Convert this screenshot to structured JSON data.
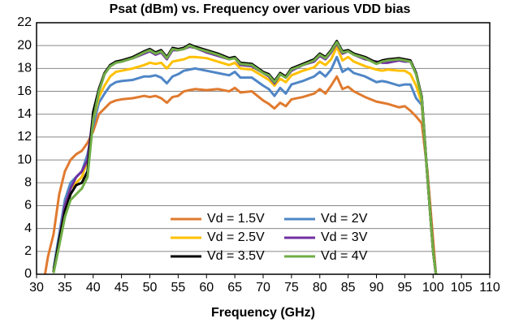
{
  "chart_data": {
    "type": "line",
    "title": "Psat (dBm) vs. Frequency over various VDD bias",
    "x_label": "Frequency (GHz)",
    "x": [
      31.5,
      32,
      33,
      34,
      35,
      36,
      37,
      38,
      39,
      40,
      41,
      42,
      43,
      44,
      45,
      47,
      49,
      50,
      51,
      52,
      53,
      54,
      55,
      56,
      57,
      58,
      60,
      62,
      64,
      65,
      66,
      68,
      70,
      71,
      72,
      73,
      74,
      75,
      77,
      79,
      80,
      81,
      82,
      83,
      84,
      85,
      86,
      88,
      90,
      91,
      92,
      94,
      95,
      96,
      97,
      98,
      99,
      100,
      100.5
    ],
    "xlim": [
      30,
      110
    ],
    "xticks": [
      30,
      35,
      40,
      45,
      50,
      55,
      60,
      65,
      70,
      75,
      80,
      85,
      90,
      95,
      100,
      105,
      110
    ],
    "ylim": [
      0,
      22
    ],
    "yticks": [
      0,
      2,
      4,
      6,
      8,
      10,
      12,
      14,
      16,
      18,
      20,
      22
    ],
    "grid": true,
    "legend_position": "bottom",
    "series": [
      {
        "name": "Vd = 1.5V",
        "color": "#e07a2f",
        "values": [
          0,
          1.5,
          3.5,
          7,
          9,
          10,
          10.5,
          10.8,
          11.5,
          12.5,
          14,
          14.5,
          15,
          15.2,
          15.3,
          15.4,
          15.6,
          15.5,
          15.6,
          15.4,
          15.0,
          15.5,
          15.6,
          16,
          16.1,
          16.2,
          16.1,
          16.2,
          16.0,
          16.3,
          15.9,
          16.0,
          15.2,
          14.9,
          14.5,
          15.0,
          14.7,
          15.3,
          15.5,
          15.8,
          16.2,
          15.8,
          16.5,
          17.3,
          16.2,
          16.4,
          16,
          15.5,
          15.1,
          15.0,
          14.9,
          14.6,
          14.7,
          14.3,
          13.8,
          13.2,
          9,
          3,
          0
        ]
      },
      {
        "name": "Vd = 2V",
        "color": "#4f86c6",
        "values": [
          null,
          null,
          0.5,
          3.5,
          6.5,
          8,
          8.5,
          9,
          10.5,
          13,
          15,
          15.8,
          16.5,
          16.8,
          16.9,
          17,
          17.3,
          17.3,
          17.4,
          17.2,
          16.7,
          17.3,
          17.5,
          17.8,
          17.9,
          18,
          17.8,
          17.6,
          17.4,
          17.7,
          17.2,
          17.2,
          16.5,
          16.2,
          15.6,
          16.3,
          15.8,
          16.6,
          16.9,
          17.3,
          17.7,
          17.3,
          17.9,
          19,
          17.7,
          18,
          17.6,
          17.3,
          16.8,
          16.9,
          16.8,
          16.5,
          16.6,
          16.6,
          15.4,
          14.8,
          8.5,
          2,
          0
        ]
      },
      {
        "name": "Vd = 2.5V",
        "color": "#ffc000",
        "values": [
          null,
          null,
          0.3,
          3,
          6,
          7.5,
          8,
          8.5,
          10,
          13.5,
          15.5,
          16.5,
          17.3,
          17.7,
          17.8,
          18,
          18.3,
          18.5,
          18.4,
          18.5,
          18,
          18.6,
          18.7,
          18.8,
          19,
          19,
          18.9,
          18.6,
          18.3,
          18.5,
          18,
          17.9,
          17.3,
          17,
          16.5,
          17.1,
          16.8,
          17.4,
          17.8,
          18.1,
          18.6,
          18.3,
          18.8,
          19.9,
          18.7,
          19,
          18.6,
          18.2,
          17.9,
          17.8,
          17.9,
          17.8,
          17.8,
          17.5,
          16.5,
          15,
          8.5,
          2,
          0
        ]
      },
      {
        "name": "Vd = 3V",
        "color": "#7030a0",
        "values": [
          null,
          null,
          0.2,
          3,
          6,
          7.5,
          8.5,
          9,
          10,
          14,
          16,
          17.5,
          18.2,
          18.5,
          18.6,
          18.9,
          19.3,
          19.5,
          19.2,
          19.4,
          18.8,
          19.6,
          19.6,
          19.7,
          19.9,
          19.8,
          19.4,
          19.1,
          18.8,
          18.9,
          18.3,
          18.2,
          17.6,
          17.3,
          16.7,
          17.5,
          17.2,
          17.8,
          18.3,
          18.6,
          19.1,
          18.8,
          19.4,
          20.2,
          19.3,
          19.5,
          19.2,
          18.8,
          18.6,
          18.5,
          18.5,
          18.7,
          18.6,
          18.6,
          17.5,
          15.5,
          8.5,
          2,
          0
        ]
      },
      {
        "name": "Vd = 3.5V",
        "color": "#000000",
        "values": [
          null,
          null,
          0.2,
          3,
          5.5,
          7,
          7.8,
          8,
          9,
          14.2,
          16.2,
          17.6,
          18.3,
          18.6,
          18.7,
          19,
          19.5,
          19.7,
          19.4,
          19.6,
          19,
          19.8,
          19.7,
          19.8,
          20.1,
          19.9,
          19.6,
          19.3,
          18.9,
          19,
          18.5,
          18.4,
          17.7,
          17.5,
          16.9,
          17.6,
          17.3,
          18,
          18.4,
          18.8,
          19.3,
          19,
          19.6,
          20.4,
          19.5,
          19.6,
          19.3,
          19,
          18.5,
          18.7,
          18.8,
          18.9,
          18.8,
          18.7,
          17.6,
          15.5,
          8.5,
          2,
          0
        ]
      },
      {
        "name": "Vd = 4V",
        "color": "#70ad47",
        "values": [
          null,
          null,
          0.1,
          2.5,
          5,
          6.5,
          7,
          7.5,
          8.5,
          13.5,
          16,
          17.5,
          18.2,
          18.5,
          18.6,
          18.9,
          19.4,
          19.6,
          19.3,
          19.5,
          18.9,
          19.7,
          19.6,
          19.7,
          20,
          19.8,
          19.5,
          19.2,
          18.8,
          18.9,
          18.4,
          18.3,
          17.6,
          17.4,
          16.8,
          17.5,
          17.2,
          17.9,
          18.3,
          18.7,
          19.2,
          18.9,
          19.5,
          20.3,
          19.4,
          19.5,
          19.2,
          18.9,
          18.4,
          18.6,
          18.7,
          18.8,
          18.7,
          18.6,
          17.5,
          15.4,
          8.5,
          2,
          0
        ]
      }
    ]
  }
}
